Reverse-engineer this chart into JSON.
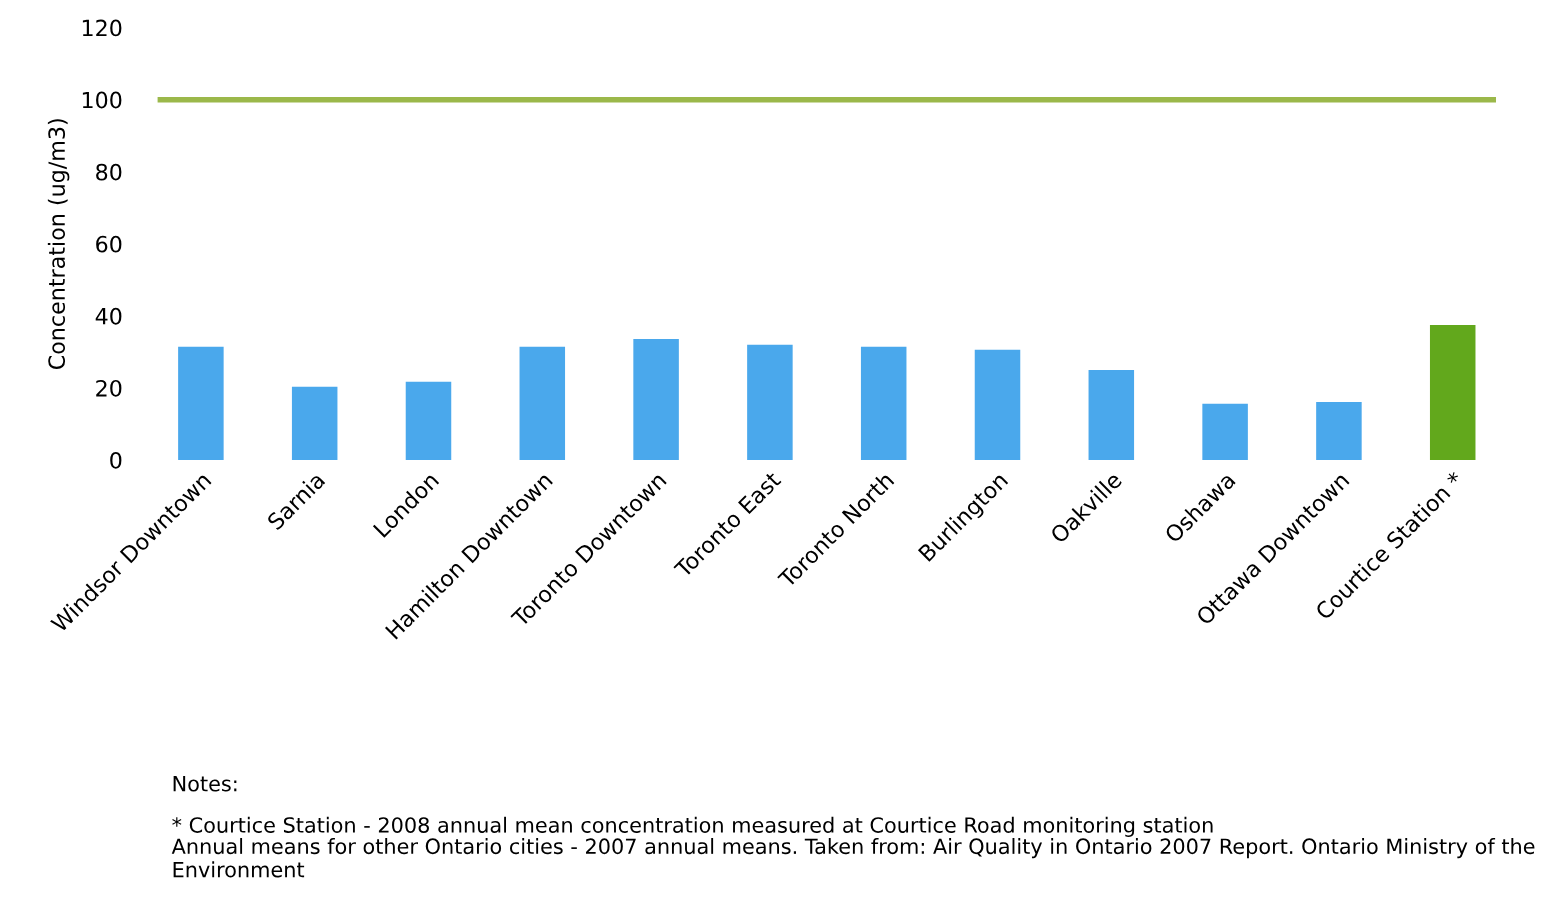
{
  "chart_data": {
    "type": "bar",
    "ylabel": "Concentration (ug/m3)",
    "categories": [
      "Windsor Downtown",
      "Sarnia",
      "London",
      "Hamilton Downtown",
      "Toronto Downtown",
      "Toronto East",
      "Toronto North",
      "Burlington",
      "Oakville",
      "Oshawa",
      "Ottawa Downtown",
      "Courtice Station *"
    ],
    "values": [
      31.4,
      20.3,
      21.7,
      31.4,
      33.6,
      32,
      31.4,
      30.6,
      25,
      15.6,
      16.1,
      37.5
    ],
    "colors": [
      "#4aa8ec",
      "#4aa8ec",
      "#4aa8ec",
      "#4aa8ec",
      "#4aa8ec",
      "#4aa8ec",
      "#4aa8ec",
      "#4aa8ec",
      "#4aa8ec",
      "#4aa8ec",
      "#4aa8ec",
      "#62a81c"
    ],
    "ylim": [
      0,
      120
    ],
    "yticks": [
      0,
      20,
      40,
      60,
      80,
      100,
      120
    ],
    "ref_lines": [
      {
        "axis": "y",
        "value": 100,
        "color": "#9bb84a"
      }
    ],
    "annotations": [
      "Notes:",
      "* Courtice Station - 2008 annual mean concentration measured at Courtice Road monitoring station",
      "Annual means for other Ontario cities - 2007 annual means. Taken from: Air Quality in Ontario 2007 Report. Ontario Ministry of the Environment"
    ],
    "grid": false,
    "legend": false
  }
}
